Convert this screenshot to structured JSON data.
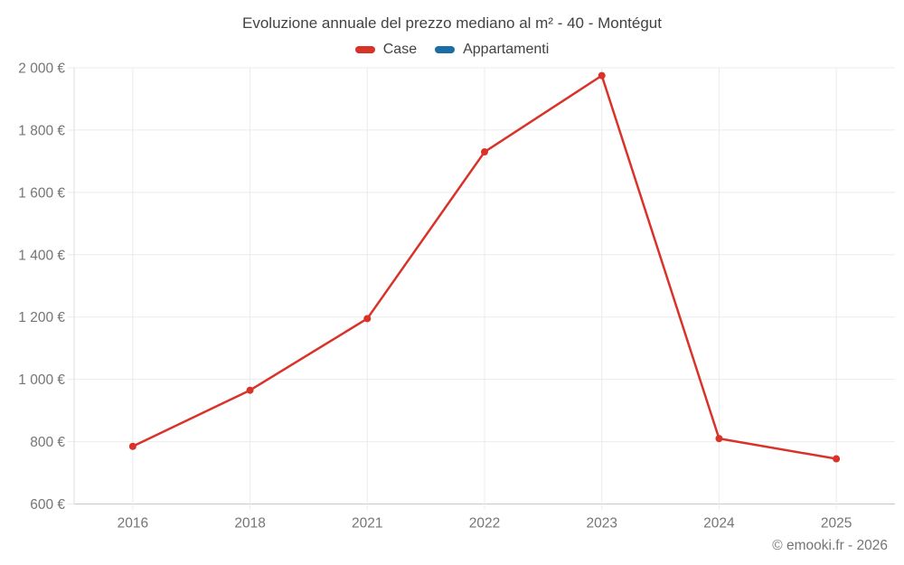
{
  "chart_data": {
    "type": "line",
    "title": "Evoluzione annuale del prezzo mediano al m² - 40 - Montégut",
    "categories": [
      "2016",
      "2018",
      "2021",
      "2022",
      "2023",
      "2024",
      "2025"
    ],
    "series": [
      {
        "name": "Case",
        "color": "#d93229",
        "values": [
          785,
          965,
          1195,
          1730,
          1975,
          810,
          745
        ]
      },
      {
        "name": "Appartamenti",
        "color": "#1c6da3",
        "values": [
          null,
          null,
          null,
          null,
          null,
          null,
          null
        ]
      }
    ],
    "xlabel": "",
    "ylabel": "",
    "ylim": [
      600,
      2000
    ],
    "yticks": {
      "values": [
        600,
        800,
        1000,
        1200,
        1400,
        1600,
        1800,
        2000
      ],
      "labels": [
        "600 €",
        "800 €",
        "1 000 €",
        "1 200 €",
        "1 400 €",
        "1 600 €",
        "1 800 €",
        "2 000 €"
      ]
    },
    "grid": true,
    "legend_position": "top"
  },
  "legend": [
    {
      "label": "Case",
      "color": "#d93229"
    },
    {
      "label": "Appartamenti",
      "color": "#1c6da3"
    }
  ],
  "footer": {
    "copyright": "© emooki.fr - 2026"
  },
  "style_colors": {
    "title_text": "#424242",
    "tick_text": "#757575",
    "gridline": "#ebebeb",
    "axis_line": "#c8c8c8",
    "plot_left_border": "#dedede"
  }
}
